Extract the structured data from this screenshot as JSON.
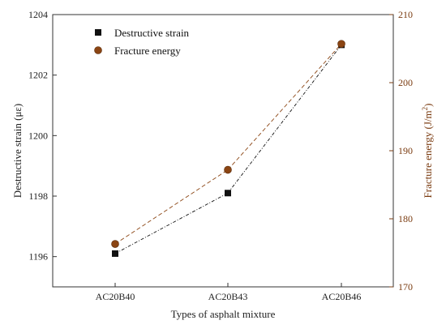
{
  "chart_data": {
    "type": "line",
    "categories": [
      "AC20B40",
      "AC20B43",
      "AC20B46"
    ],
    "xlabel": "Types of asphalt mixture",
    "y_left": {
      "label": "Destructive strain (με)",
      "lim": [
        1195,
        1204
      ],
      "ticks": [
        1196,
        1198,
        1200,
        1202,
        1204
      ]
    },
    "y_right": {
      "label_main": "Fracture energy (J/m",
      "label_sup": "2",
      "label_end": ")",
      "lim": [
        170,
        210
      ],
      "ticks": [
        170,
        180,
        190,
        200,
        210
      ]
    },
    "series": [
      {
        "name": "Destructive strain",
        "axis": "left",
        "values": [
          1196.1,
          1198.1,
          1203.0
        ],
        "marker": "square",
        "color": "#111111",
        "line_style": "dash-dot"
      },
      {
        "name": "Fracture energy",
        "axis": "right",
        "values": [
          176.3,
          187.2,
          205.7
        ],
        "marker": "circle",
        "color": "#8b4513",
        "line_style": "dashed"
      }
    ],
    "legend_position": "top-left",
    "grid": false
  }
}
